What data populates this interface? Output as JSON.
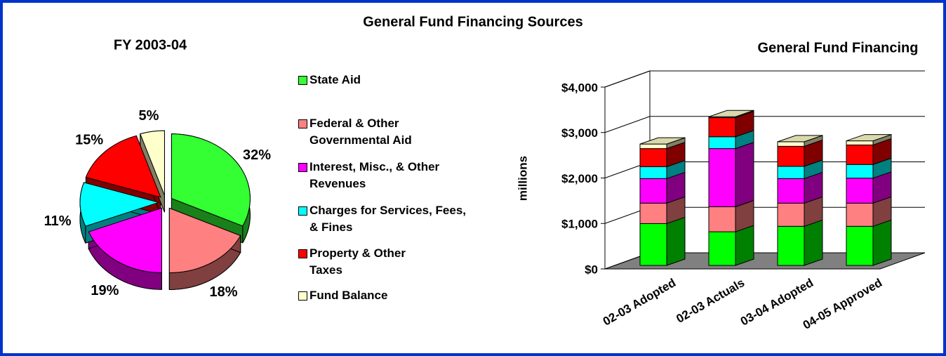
{
  "title": "General Fund Financing Sources",
  "chart_data": [
    {
      "type": "pie",
      "title": "FY 2003-04",
      "categories": [
        "State Aid",
        "Federal & Other Governmental Aid",
        "Interest, Misc., & Other Revenues",
        "Charges for Services, Fees, & Fines",
        "Property & Other Taxes",
        "Fund Balance"
      ],
      "values": [
        32,
        18,
        19,
        11,
        15,
        5
      ],
      "value_labels": [
        "32%",
        "18%",
        "19%",
        "11%",
        "15%",
        "5%"
      ],
      "colors": [
        "#33ff33",
        "#ff8080",
        "#ff00ff",
        "#00ffff",
        "#ff0000",
        "#ffffcc"
      ],
      "legend": "right"
    },
    {
      "type": "bar",
      "stacked": true,
      "title": "General Fund Financing",
      "ylabel": "millions",
      "categories": [
        "02-03 Adopted",
        "02-03 Actuals",
        "03-04 Adopted",
        "04-05 Approved"
      ],
      "series": [
        {
          "color": "#00ff00",
          "values": [
            920,
            740,
            860,
            860
          ]
        },
        {
          "color": "#ff8080",
          "values": [
            450,
            550,
            510,
            510
          ]
        },
        {
          "color": "#ff00ff",
          "values": [
            540,
            1280,
            540,
            550
          ]
        },
        {
          "color": "#00ffff",
          "values": [
            260,
            260,
            270,
            300
          ]
        },
        {
          "color": "#ff0000",
          "values": [
            400,
            420,
            440,
            430
          ]
        },
        {
          "color": "#ffffcc",
          "values": [
            100,
            20,
            100,
            90
          ]
        }
      ],
      "ylim": [
        0,
        4000
      ],
      "yticks": [
        {
          "value": 0,
          "label": "$0"
        },
        {
          "value": 1000,
          "label": "$1,000"
        },
        {
          "value": 2000,
          "label": "$2,000"
        },
        {
          "value": 3000,
          "label": "$3,000"
        },
        {
          "value": 4000,
          "label": "$4,000"
        }
      ],
      "grid": true
    }
  ]
}
